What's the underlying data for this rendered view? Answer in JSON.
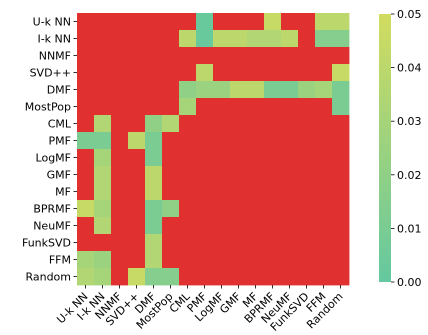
{
  "chart_data": {
    "type": "heatmap",
    "title": "",
    "xlabel": "",
    "ylabel": "",
    "rows": [
      "U-k NN",
      "I-k NN",
      "NNMF",
      "SVD++",
      "DMF",
      "MostPop",
      "CML",
      "PMF",
      "LogMF",
      "GMF",
      "MF",
      "BPRMF",
      "NeuMF",
      "FunkSVD",
      "FFM",
      "Random"
    ],
    "columns": [
      "U-k NN",
      "I-k NN",
      "NNMF",
      "SVD++",
      "DMF",
      "MostPop",
      "CML",
      "PMF",
      "LogMF",
      "GMF",
      "MF",
      "BPRMF",
      "NeuMF",
      "FunkSVD",
      "FFM",
      "Random"
    ],
    "mask_color": "#e03030",
    "values": [
      [
        null,
        null,
        null,
        null,
        null,
        null,
        null,
        0.002,
        null,
        null,
        null,
        0.045,
        null,
        null,
        0.04,
        0.04
      ],
      [
        null,
        null,
        null,
        null,
        null,
        null,
        0.04,
        0.002,
        0.04,
        0.04,
        0.035,
        0.035,
        0.04,
        null,
        0.015,
        0.015
      ],
      [
        null,
        null,
        null,
        null,
        null,
        null,
        null,
        null,
        null,
        null,
        null,
        null,
        null,
        null,
        null,
        null
      ],
      [
        null,
        null,
        null,
        null,
        null,
        null,
        null,
        0.04,
        null,
        null,
        null,
        null,
        null,
        null,
        null,
        0.045
      ],
      [
        null,
        null,
        null,
        null,
        null,
        null,
        0.02,
        0.025,
        0.025,
        0.04,
        0.04,
        0.01,
        0.01,
        0.025,
        0.03,
        0.01
      ],
      [
        null,
        null,
        null,
        null,
        null,
        null,
        0.03,
        null,
        null,
        null,
        null,
        null,
        null,
        null,
        null,
        0.01
      ],
      [
        null,
        0.035,
        null,
        null,
        0.02,
        0.035,
        null,
        null,
        null,
        null,
        null,
        null,
        null,
        null,
        null,
        null
      ],
      [
        0.01,
        0.01,
        null,
        0.04,
        0.01,
        null,
        null,
        null,
        null,
        null,
        null,
        null,
        null,
        null,
        null,
        null
      ],
      [
        null,
        0.03,
        null,
        null,
        0.01,
        null,
        null,
        null,
        null,
        null,
        null,
        null,
        null,
        null,
        null,
        null
      ],
      [
        null,
        0.035,
        null,
        null,
        0.04,
        null,
        null,
        null,
        null,
        null,
        null,
        null,
        null,
        null,
        null,
        null
      ],
      [
        null,
        0.035,
        null,
        null,
        0.04,
        null,
        null,
        null,
        null,
        null,
        null,
        null,
        null,
        null,
        null,
        null
      ],
      [
        0.045,
        0.03,
        null,
        null,
        0.01,
        0.02,
        null,
        null,
        null,
        null,
        null,
        null,
        null,
        null,
        null,
        null
      ],
      [
        null,
        0.035,
        null,
        null,
        0.01,
        null,
        null,
        null,
        null,
        null,
        null,
        null,
        null,
        null,
        null,
        null
      ],
      [
        null,
        null,
        null,
        null,
        0.035,
        null,
        null,
        null,
        null,
        null,
        null,
        null,
        null,
        null,
        null,
        null
      ],
      [
        0.03,
        0.025,
        null,
        null,
        0.035,
        null,
        null,
        null,
        null,
        null,
        null,
        null,
        null,
        null,
        null,
        null
      ],
      [
        0.035,
        0.03,
        null,
        0.045,
        0.015,
        0.015,
        null,
        null,
        null,
        null,
        null,
        null,
        null,
        null,
        null,
        null
      ]
    ],
    "colorbar": {
      "min": 0.0,
      "max": 0.05,
      "ticks": [
        "0.00",
        "0.01",
        "0.02",
        "0.03",
        "0.04",
        "0.05"
      ],
      "color_low": "#64c8a0",
      "color_high": "#d2dc5f"
    }
  }
}
